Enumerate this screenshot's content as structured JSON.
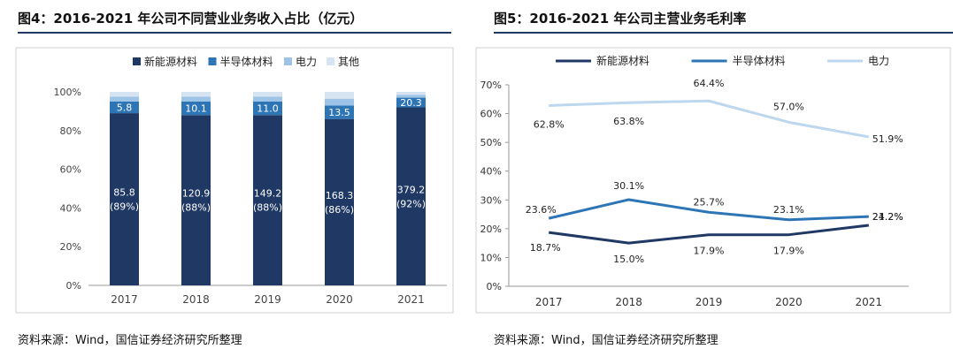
{
  "left": {
    "title": "图4：2016-2021 年公司不同营业业务收入占比（亿元）",
    "source": "资料来源：Wind，国信证券经济研究所整理"
  },
  "right": {
    "title": "图5：2016-2021 年公司主营业务毛利率",
    "source": "资料来源：Wind，国信证券经济研究所整理"
  },
  "chart_data": [
    {
      "type": "bar",
      "stacked": true,
      "percent_axis": true,
      "title": "图4：2016-2021 年公司不同营业业务收入占比（亿元）",
      "categories": [
        "2017",
        "2018",
        "2019",
        "2020",
        "2021"
      ],
      "ylim": [
        0,
        100
      ],
      "yticks": [
        "0%",
        "20%",
        "40%",
        "60%",
        "80%",
        "100%"
      ],
      "legend_position": "top",
      "series": [
        {
          "name": "新能源材料",
          "color": "#1f3864",
          "share": [
            89,
            88,
            88,
            86,
            92
          ],
          "labels": [
            "85.8\n(89%)",
            "120.9\n(88%)",
            "149.2\n(88%)",
            "168.3\n(86%)",
            "379.2\n(92%)"
          ]
        },
        {
          "name": "半导体材料",
          "color": "#2e75b6",
          "share": [
            6,
            7,
            7,
            7,
            5
          ],
          "labels": [
            "5.8",
            "10.1",
            "11.0",
            "13.5",
            "20.3"
          ]
        },
        {
          "name": "电力",
          "color": "#9dc3e6",
          "share": [
            2.5,
            2.5,
            2.5,
            3.5,
            1.5
          ],
          "labels": []
        },
        {
          "name": "其他",
          "color": "#d6e4f2",
          "share": [
            2.5,
            2.5,
            2.5,
            3.5,
            1.5
          ],
          "labels": []
        }
      ]
    },
    {
      "type": "line",
      "title": "图5：2016-2021 年公司主营业务毛利率",
      "categories": [
        "2017",
        "2018",
        "2019",
        "2020",
        "2021"
      ],
      "ylim": [
        0,
        70
      ],
      "yticks": [
        "0%",
        "10%",
        "20%",
        "30%",
        "40%",
        "50%",
        "60%",
        "70%"
      ],
      "legend_position": "top",
      "series": [
        {
          "name": "新能源材料",
          "color": "#1f3864",
          "values": [
            18.7,
            15.0,
            17.9,
            17.9,
            21.2
          ],
          "labels": [
            "18.7%",
            "15.0%",
            "17.9%",
            "17.9%",
            "21.2%"
          ]
        },
        {
          "name": "半导体材料",
          "color": "#2e75b6",
          "values": [
            23.6,
            30.1,
            25.7,
            23.1,
            24.2
          ],
          "labels": [
            "23.6%",
            "30.1%",
            "25.7%",
            "23.1%",
            "24.2%"
          ]
        },
        {
          "name": "电力",
          "color": "#bdd7ee",
          "values": [
            62.8,
            63.8,
            64.4,
            57.0,
            51.9
          ],
          "labels": [
            "62.8%",
            "63.8%",
            "64.4%",
            "57.0%",
            "51.9%"
          ]
        }
      ]
    }
  ]
}
